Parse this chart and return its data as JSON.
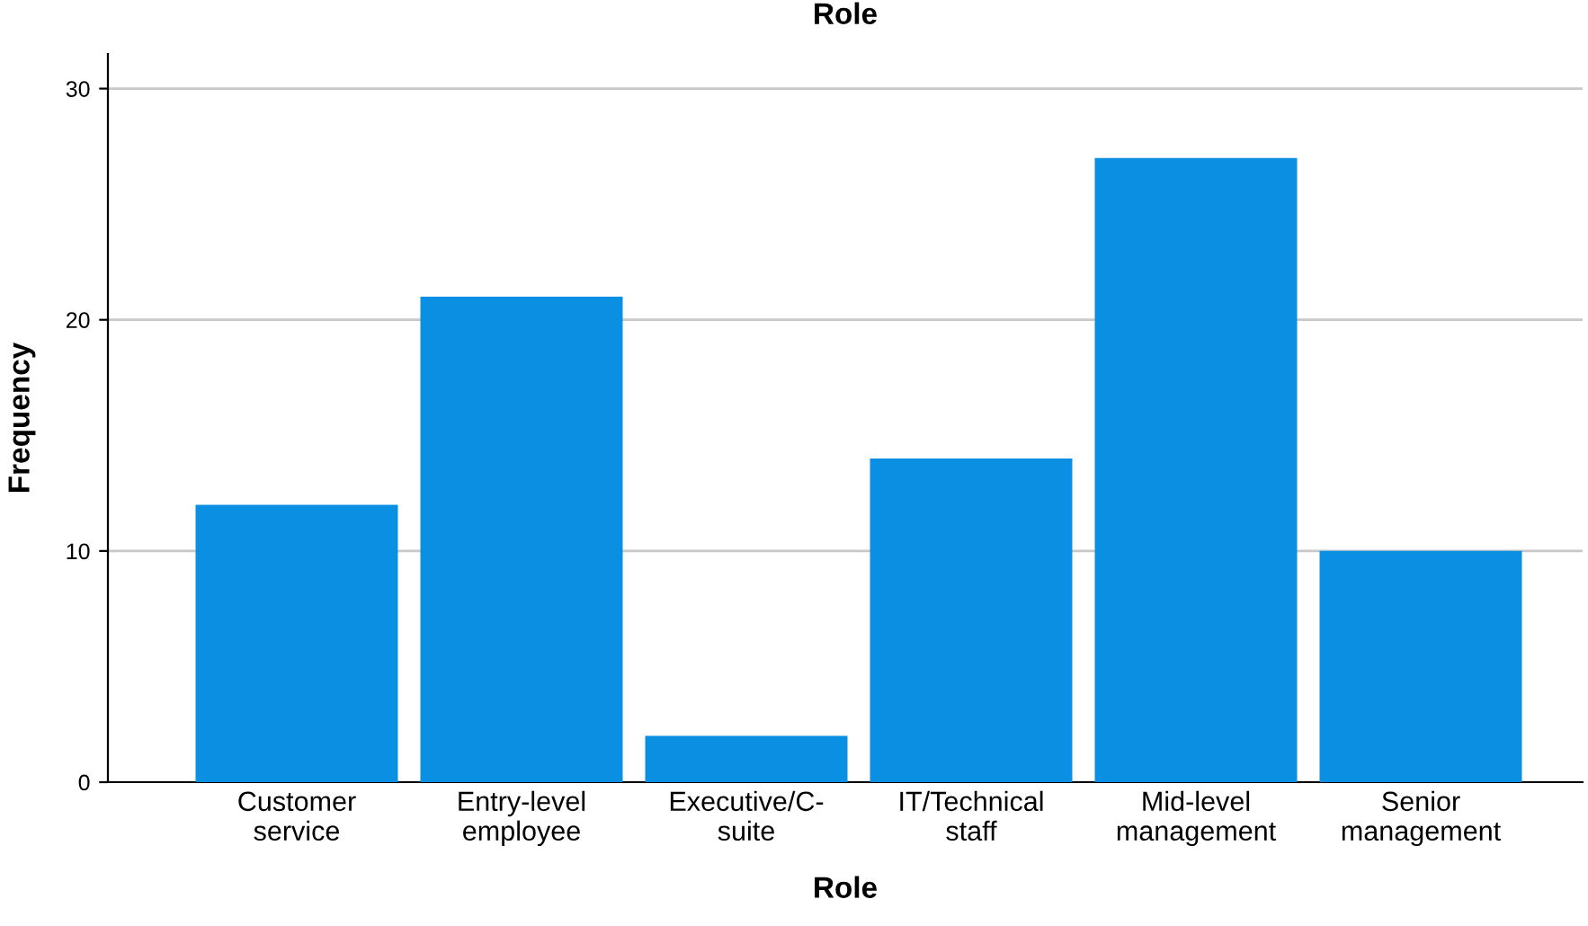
{
  "chart_data": {
    "type": "bar",
    "title": "Role",
    "xlabel": "Role",
    "ylabel": "Frequency",
    "categories": [
      "Customer\nservice",
      "Entry-level\nemployee",
      "Executive/C-\nsuite",
      "IT/Technical\nstaff",
      "Mid-level\nmanagement",
      "Senior\nmanagement"
    ],
    "values": [
      12,
      21,
      2,
      14,
      27,
      10
    ],
    "color": "#0b8fe3",
    "ylim": [
      0,
      31.5
    ],
    "yticks": [
      0,
      10,
      20,
      30
    ],
    "grid": "y"
  }
}
